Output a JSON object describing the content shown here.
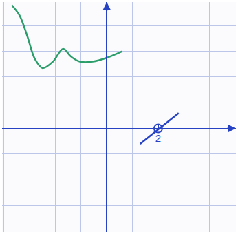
{
  "chart_data": {
    "type": "line",
    "xlim": [
      -4.08,
      5.03
    ],
    "ylim": [
      -4.03,
      4.92
    ],
    "xticks": [
      2
    ],
    "yticks": [],
    "tick_labels": "x",
    "grid": true,
    "series": [
      {
        "type": "line",
        "line_style": "spline",
        "color": "#2a9d6a",
        "x": [
          -3.7,
          -3.4,
          -3.1,
          -2.8,
          -2.5,
          -2.1,
          -1.7,
          -1.4,
          -1.05,
          -0.55,
          0,
          0.6
        ],
        "values": [
          4.8,
          4.4,
          3.6,
          2.7,
          2.35,
          2.6,
          3.1,
          2.8,
          2.6,
          2.6,
          2.75,
          3.0
        ]
      },
      {
        "type": "line",
        "line_style": "solid",
        "color": "#2743c4",
        "x": [
          1.3,
          2.8
        ],
        "values": [
          -0.6,
          0.6
        ]
      },
      {
        "type": "scatter",
        "marker": "circle-open",
        "color": "#2743c4",
        "x": [
          2
        ],
        "values": [
          0
        ]
      }
    ]
  }
}
